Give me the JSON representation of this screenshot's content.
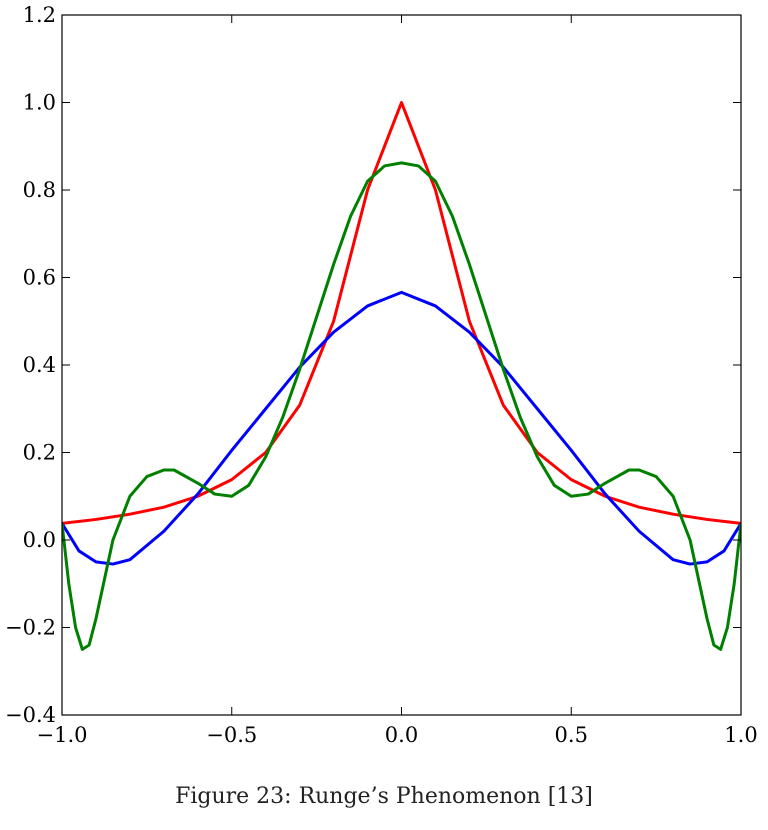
{
  "caption": "Figure 23: Runge’s Phenomenon [13]",
  "chart_data": {
    "type": "line",
    "title": "",
    "xlabel": "",
    "ylabel": "",
    "xlim": [
      -1.0,
      1.0
    ],
    "ylim": [
      -0.4,
      1.2
    ],
    "xticks": [
      -1.0,
      -0.5,
      0.0,
      0.5,
      1.0
    ],
    "xtick_labels": [
      "−1.0",
      "−0.5",
      "0.0",
      "0.5",
      "1.0"
    ],
    "yticks": [
      -0.4,
      -0.2,
      0.0,
      0.2,
      0.4,
      0.6,
      0.8,
      1.0,
      1.2
    ],
    "ytick_labels": [
      "−0.4",
      "−0.2",
      "0.0",
      "0.2",
      "0.4",
      "0.6",
      "0.8",
      "1.0",
      "1.2"
    ],
    "grid": false,
    "legend": "none",
    "series": [
      {
        "color": "#ff0000",
        "x": [
          -1.0,
          -0.9,
          -0.8,
          -0.7,
          -0.6,
          -0.5,
          -0.4,
          -0.3,
          -0.2,
          -0.1,
          0.0,
          0.1,
          0.2,
          0.3,
          0.4,
          0.5,
          0.6,
          0.7,
          0.8,
          0.9,
          1.0
        ],
        "y": [
          0.038,
          0.047,
          0.059,
          0.075,
          0.1,
          0.138,
          0.2,
          0.308,
          0.5,
          0.8,
          1.0,
          0.8,
          0.5,
          0.308,
          0.2,
          0.138,
          0.1,
          0.075,
          0.059,
          0.047,
          0.038
        ]
      },
      {
        "color": "#0000ff",
        "x": [
          -1.0,
          -0.95,
          -0.9,
          -0.85,
          -0.8,
          -0.7,
          -0.6,
          -0.5,
          -0.4,
          -0.3,
          -0.2,
          -0.1,
          0.0,
          0.1,
          0.2,
          0.3,
          0.4,
          0.5,
          0.6,
          0.7,
          0.8,
          0.85,
          0.9,
          0.95,
          1.0
        ],
        "y": [
          0.038,
          -0.025,
          -0.05,
          -0.055,
          -0.045,
          0.02,
          0.105,
          0.205,
          0.3,
          0.395,
          0.475,
          0.535,
          0.566,
          0.535,
          0.475,
          0.395,
          0.3,
          0.205,
          0.105,
          0.02,
          -0.045,
          -0.055,
          -0.05,
          -0.025,
          0.038
        ]
      },
      {
        "color": "#008000",
        "x": [
          -1.0,
          -0.98,
          -0.96,
          -0.94,
          -0.92,
          -0.9,
          -0.85,
          -0.8,
          -0.75,
          -0.7,
          -0.67,
          -0.6,
          -0.55,
          -0.5,
          -0.45,
          -0.4,
          -0.35,
          -0.3,
          -0.25,
          -0.2,
          -0.15,
          -0.1,
          -0.05,
          0.0,
          0.05,
          0.1,
          0.15,
          0.2,
          0.25,
          0.3,
          0.35,
          0.4,
          0.45,
          0.5,
          0.55,
          0.6,
          0.67,
          0.7,
          0.75,
          0.8,
          0.85,
          0.9,
          0.92,
          0.94,
          0.96,
          0.98,
          1.0
        ],
        "y": [
          0.038,
          -0.1,
          -0.2,
          -0.25,
          -0.24,
          -0.18,
          0.0,
          0.1,
          0.145,
          0.16,
          0.16,
          0.13,
          0.105,
          0.1,
          0.125,
          0.19,
          0.28,
          0.39,
          0.51,
          0.63,
          0.74,
          0.82,
          0.855,
          0.862,
          0.855,
          0.82,
          0.74,
          0.63,
          0.51,
          0.39,
          0.28,
          0.19,
          0.125,
          0.1,
          0.105,
          0.13,
          0.16,
          0.16,
          0.145,
          0.1,
          0.0,
          -0.18,
          -0.24,
          -0.25,
          -0.2,
          -0.1,
          0.038
        ]
      }
    ]
  }
}
